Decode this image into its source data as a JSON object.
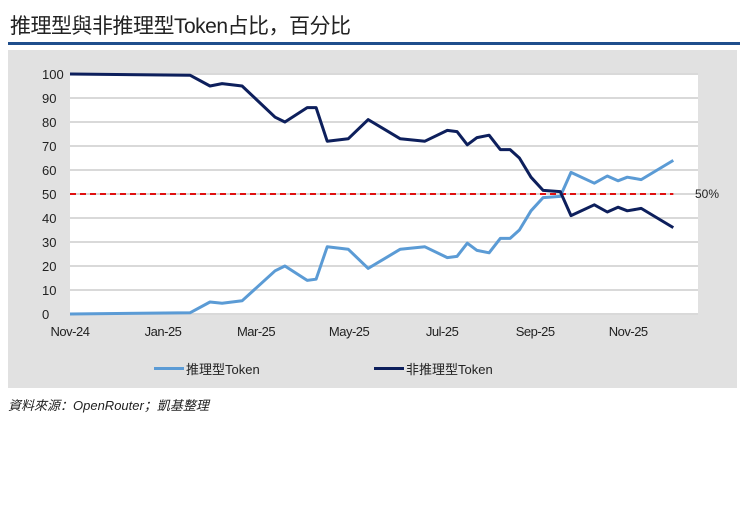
{
  "title": "推理型與非推理型Token占比，百分比",
  "source": "資料來源：OpenRouter；凱基整理",
  "chart_data": {
    "type": "line",
    "title": "推理型與非推理型Token占比，百分比",
    "xlabel": "",
    "ylabel": "",
    "x_unit": "months since Nov-24",
    "xlim": [
      0,
      13.5
    ],
    "ylim": [
      0,
      100
    ],
    "yticks": [
      "0",
      "10",
      "20",
      "30",
      "40",
      "50",
      "60",
      "70",
      "80",
      "90",
      "100"
    ],
    "xticks": [
      {
        "x": 0,
        "label": "Nov-24"
      },
      {
        "x": 2,
        "label": "Jan-25"
      },
      {
        "x": 4,
        "label": "Mar-25"
      },
      {
        "x": 6,
        "label": "May-25"
      },
      {
        "x": 8,
        "label": "Jul-25"
      },
      {
        "x": 10,
        "label": "Sep-25"
      },
      {
        "x": 12,
        "label": "Nov-25"
      }
    ],
    "grid": true,
    "legend_position": "bottom",
    "reference_line": {
      "y": 50,
      "label": "50%",
      "color": "#e01010"
    },
    "x": [
      0,
      2.58,
      3.01,
      3.27,
      3.7,
      4.41,
      4.62,
      5.1,
      5.29,
      5.53,
      5.98,
      6.41,
      7.1,
      7.63,
      8.11,
      8.32,
      8.54,
      8.75,
      9.01,
      9.25,
      9.46,
      9.66,
      9.91,
      10.17,
      10.54,
      10.77,
      11.27,
      11.55,
      11.78,
      11.98,
      12.28,
      12.97
    ],
    "series": [
      {
        "name": "推理型Token",
        "color": "#5b9bd5",
        "values": [
          0,
          0.5,
          5,
          4.5,
          5.5,
          18,
          20,
          14,
          14.5,
          28,
          27,
          19,
          27,
          28,
          23.5,
          24,
          29.5,
          26.5,
          25.5,
          31.5,
          31.5,
          35,
          43,
          48.5,
          49,
          59,
          54.5,
          57.5,
          55.5,
          57,
          56,
          64
        ]
      },
      {
        "name": "非推理型Token",
        "color": "#0d1f5c",
        "values": [
          100,
          99.5,
          95,
          96,
          95,
          82,
          80,
          86,
          86,
          72,
          73,
          81,
          73,
          72,
          76.5,
          76,
          70.5,
          73.5,
          74.5,
          68.5,
          68.5,
          65,
          57,
          51.5,
          51,
          41,
          45.5,
          42.5,
          44.5,
          43,
          44,
          36
        ]
      }
    ]
  }
}
